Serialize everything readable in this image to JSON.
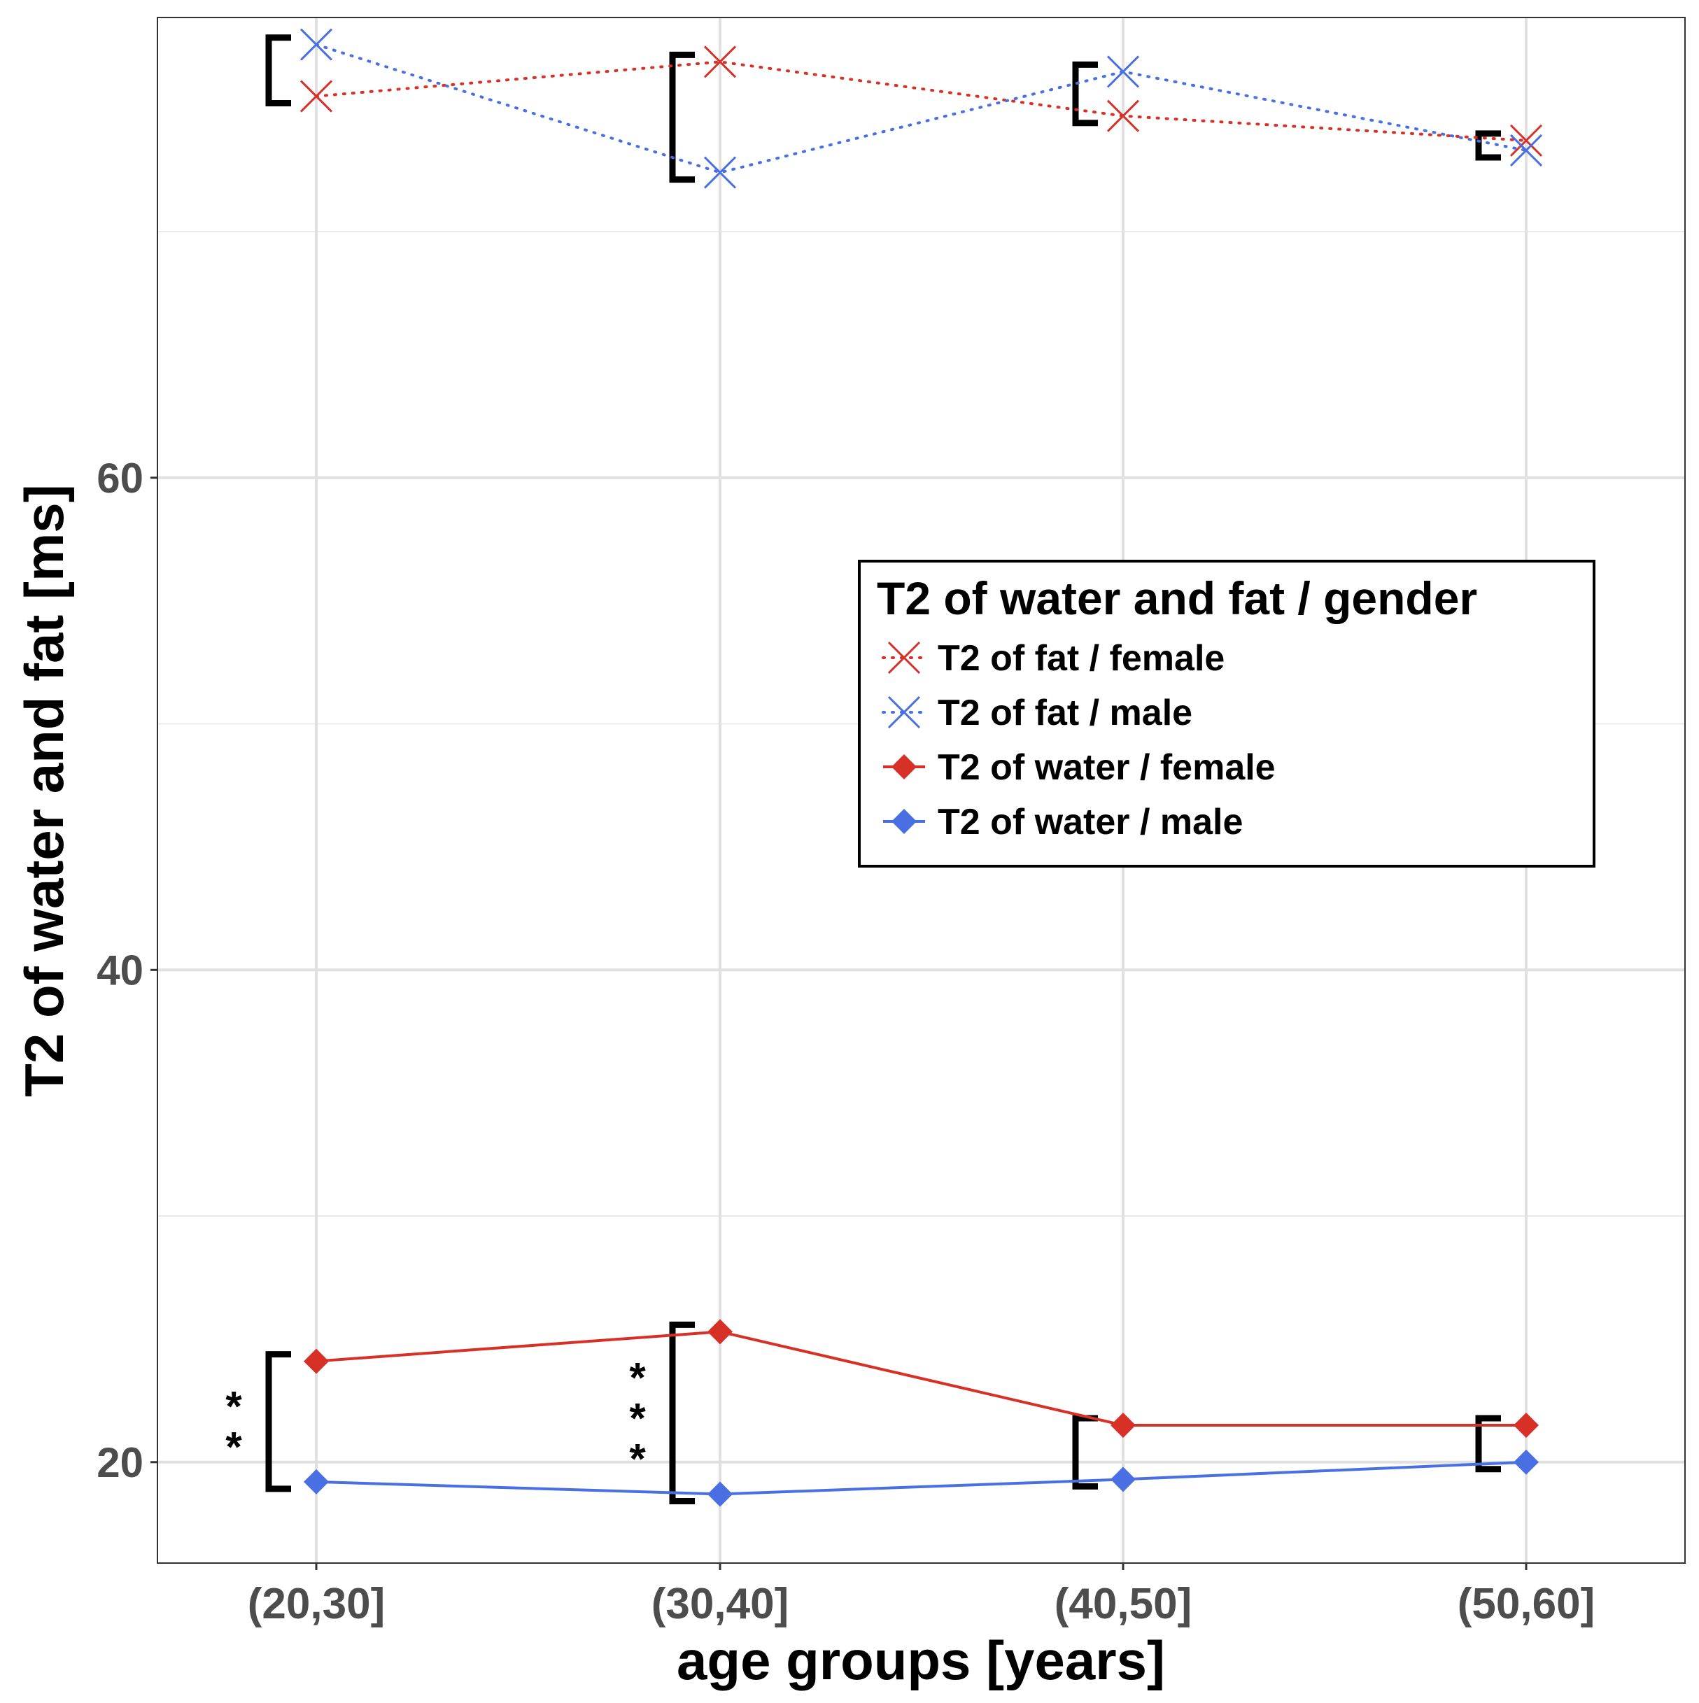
{
  "chart_data": {
    "type": "line",
    "xlabel": "age groups [years]",
    "ylabel": "T2 of water and fat [ms]",
    "categories": [
      "(20,30]",
      "(30,40]",
      "(40,50]",
      "(50,60]"
    ],
    "ylim": [
      15.9,
      78.7
    ],
    "yticks": [
      20,
      40,
      60
    ],
    "grid": true,
    "legend": {
      "title": "T2 of water and fat / gender",
      "position": "right-center"
    },
    "series": [
      {
        "name": "T2 of fat / female",
        "color": "#d73027",
        "linestyle": "dotted",
        "marker": "x",
        "values": [
          75.5,
          76.9,
          74.7,
          73.7
        ]
      },
      {
        "name": "T2 of fat / male",
        "color": "#4a6fe3",
        "linestyle": "dotted",
        "marker": "x",
        "values": [
          77.6,
          72.4,
          76.5,
          73.3
        ]
      },
      {
        "name": "T2 of water / female",
        "color": "#d73027",
        "linestyle": "solid",
        "marker": "diamond",
        "values": [
          24.1,
          25.3,
          21.5,
          21.5
        ]
      },
      {
        "name": "T2 of water / male",
        "color": "#4a6fe3",
        "linestyle": "solid",
        "marker": "diamond",
        "values": [
          19.2,
          18.7,
          19.3,
          20.0
        ]
      }
    ],
    "significance": [
      {
        "category": "(20,30]",
        "series_pair": "fat",
        "label": ""
      },
      {
        "category": "(30,40]",
        "series_pair": "fat",
        "label": ""
      },
      {
        "category": "(40,50]",
        "series_pair": "fat",
        "label": ""
      },
      {
        "category": "(50,60]",
        "series_pair": "fat",
        "label": ""
      },
      {
        "category": "(20,30]",
        "series_pair": "water",
        "label": "**"
      },
      {
        "category": "(30,40]",
        "series_pair": "water",
        "label": "***"
      },
      {
        "category": "(40,50]",
        "series_pair": "water",
        "label": ""
      },
      {
        "category": "(50,60]",
        "series_pair": "water",
        "label": ""
      }
    ]
  }
}
